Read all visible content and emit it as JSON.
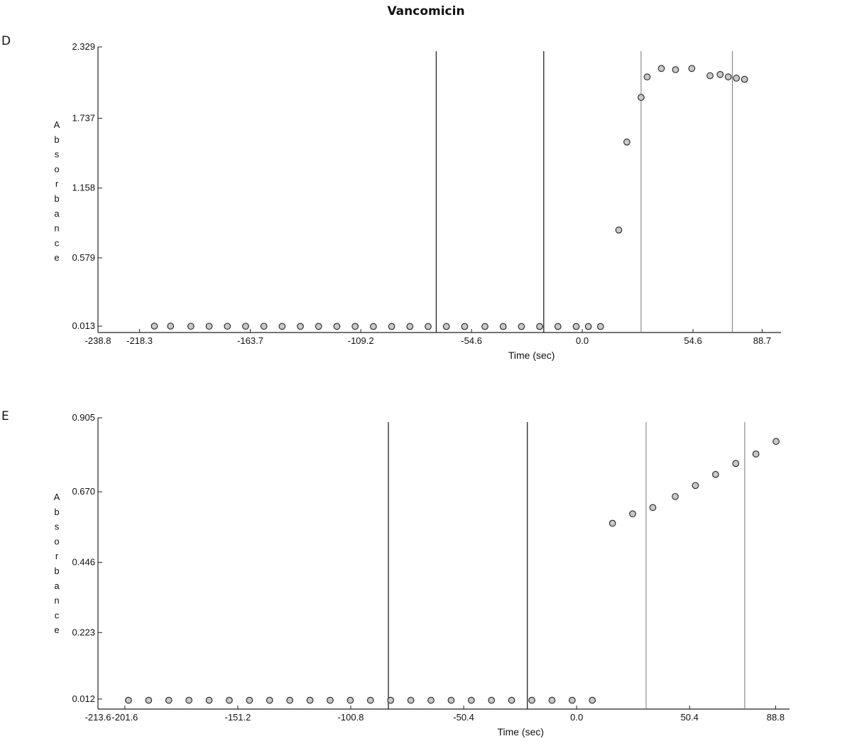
{
  "figure": {
    "title": "Vancomicin",
    "panels": [
      "D",
      "E"
    ]
  },
  "chart_data": [
    {
      "type": "scatter",
      "panel": "D",
      "title": "",
      "xlabel": "Time (sec)",
      "ylabel": "Absorbance",
      "xlim": [
        -238.8,
        98.0
      ],
      "ylim": [
        -0.04,
        2.329
      ],
      "x_ticks": [
        -238.8,
        -218.3,
        -163.7,
        -109.2,
        -54.6,
        0.0,
        54.6,
        88.7
      ],
      "x_tick_labels": [
        "-238.8",
        "-218.3",
        "-163.7",
        "-109.2",
        "-54.6",
        "0.0",
        "54.6",
        "88.7"
      ],
      "y_ticks": [
        0.013,
        0.579,
        1.158,
        1.737,
        2.329
      ],
      "y_tick_labels": [
        "0.013",
        "0.579",
        "1.158",
        "1.737",
        "2.329"
      ],
      "vertical_lines": [
        -72,
        -19,
        29,
        74
      ],
      "grid": false,
      "marker": "circle",
      "series": [
        {
          "x": [
            -211,
            -203,
            -193,
            -184,
            -175,
            -166,
            -157,
            -148,
            -139,
            -130,
            -121,
            -112,
            -103,
            -94,
            -85,
            -76,
            -67,
            -58,
            -48,
            -39,
            -30,
            -21,
            -12,
            -3,
            3,
            9,
            18,
            22,
            29,
            32,
            39,
            46,
            54,
            63,
            68,
            72,
            76,
            80
          ],
          "y": [
            0.013,
            0.013,
            0.012,
            0.012,
            0.012,
            0.012,
            0.012,
            0.011,
            0.011,
            0.011,
            0.011,
            0.011,
            0.01,
            0.01,
            0.01,
            0.01,
            0.01,
            0.01,
            0.01,
            0.01,
            0.01,
            0.01,
            0.01,
            0.01,
            0.01,
            0.01,
            0.81,
            1.54,
            1.91,
            2.08,
            2.15,
            2.14,
            2.15,
            2.09,
            2.1,
            2.08,
            2.07,
            2.06
          ]
        }
      ]
    },
    {
      "type": "scatter",
      "panel": "E",
      "title": "",
      "xlabel": "Time (sec)",
      "ylabel": "Absorbance",
      "xlim": [
        -213.6,
        95.0
      ],
      "ylim": [
        -0.02,
        0.905
      ],
      "x_ticks": [
        -213.6,
        -201.6,
        -151.2,
        -100.8,
        -50.4,
        0.0,
        50.4,
        88.8
      ],
      "x_tick_labels": [
        "-213.6",
        "-201.6",
        "-151.2",
        "-100.8",
        "-50.4",
        "0.0",
        "50.4",
        "88.8"
      ],
      "y_ticks": [
        0.012,
        0.223,
        0.446,
        0.67,
        0.905
      ],
      "y_tick_labels": [
        "0.012",
        "0.223",
        "0.446",
        "0.670",
        "0.905"
      ],
      "vertical_lines": [
        -84,
        -22,
        31,
        75
      ],
      "grid": false,
      "marker": "circle",
      "series": [
        {
          "x": [
            -200,
            -191,
            -182,
            -173,
            -164,
            -155,
            -146,
            -137,
            -128,
            -119,
            -110,
            -101,
            -92,
            -83,
            -74,
            -65,
            -56,
            -47,
            -38,
            -29,
            -20,
            -11,
            -2,
            7,
            16,
            25,
            34,
            44,
            53,
            62,
            71,
            80,
            89
          ],
          "y": [
            0.008,
            0.008,
            0.008,
            0.008,
            0.008,
            0.008,
            0.008,
            0.008,
            0.008,
            0.008,
            0.008,
            0.008,
            0.008,
            0.008,
            0.008,
            0.008,
            0.008,
            0.008,
            0.008,
            0.008,
            0.008,
            0.008,
            0.008,
            0.008,
            0.57,
            0.6,
            0.62,
            0.655,
            0.69,
            0.725,
            0.76,
            0.79,
            0.83
          ]
        }
      ]
    }
  ]
}
